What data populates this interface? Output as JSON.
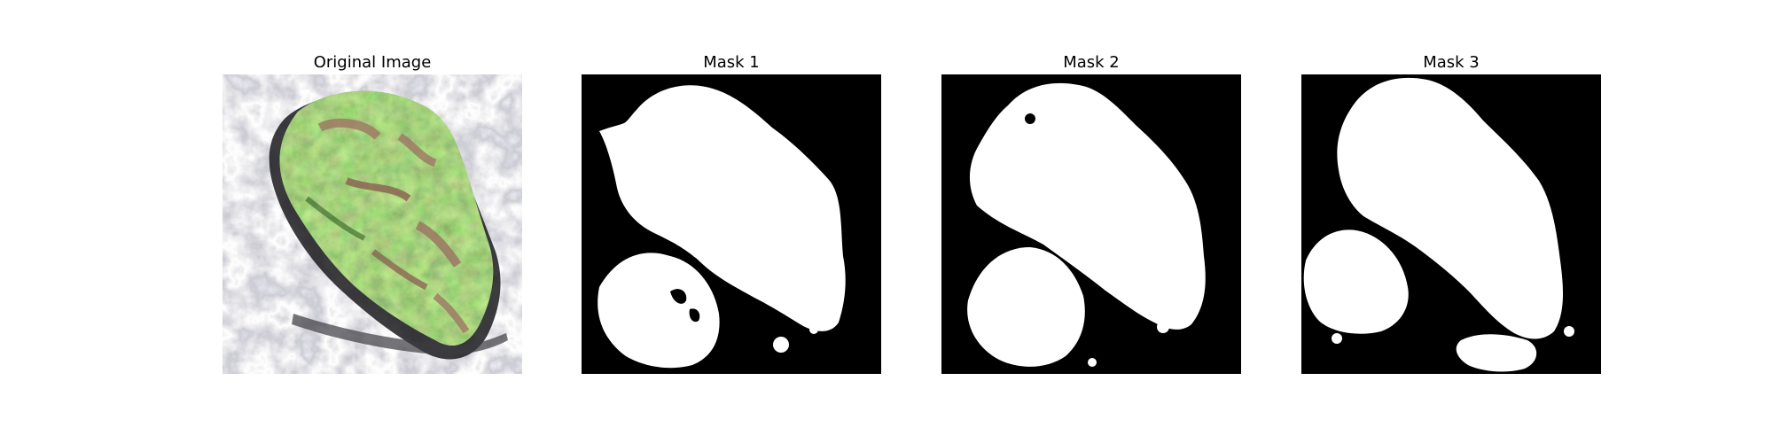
{
  "panels": [
    {
      "title": "Original Image"
    },
    {
      "title": "Mask 1"
    },
    {
      "title": "Mask 2"
    },
    {
      "title": "Mask 3"
    }
  ],
  "colors": {
    "background": "#ffffff",
    "mask_background": "#000000",
    "mask_foreground": "#ffffff",
    "island_green": "#7fb957",
    "island_brown": "#9c7564",
    "silver_texture": "#c9c8cf",
    "shadow": "#1b1b1f"
  }
}
